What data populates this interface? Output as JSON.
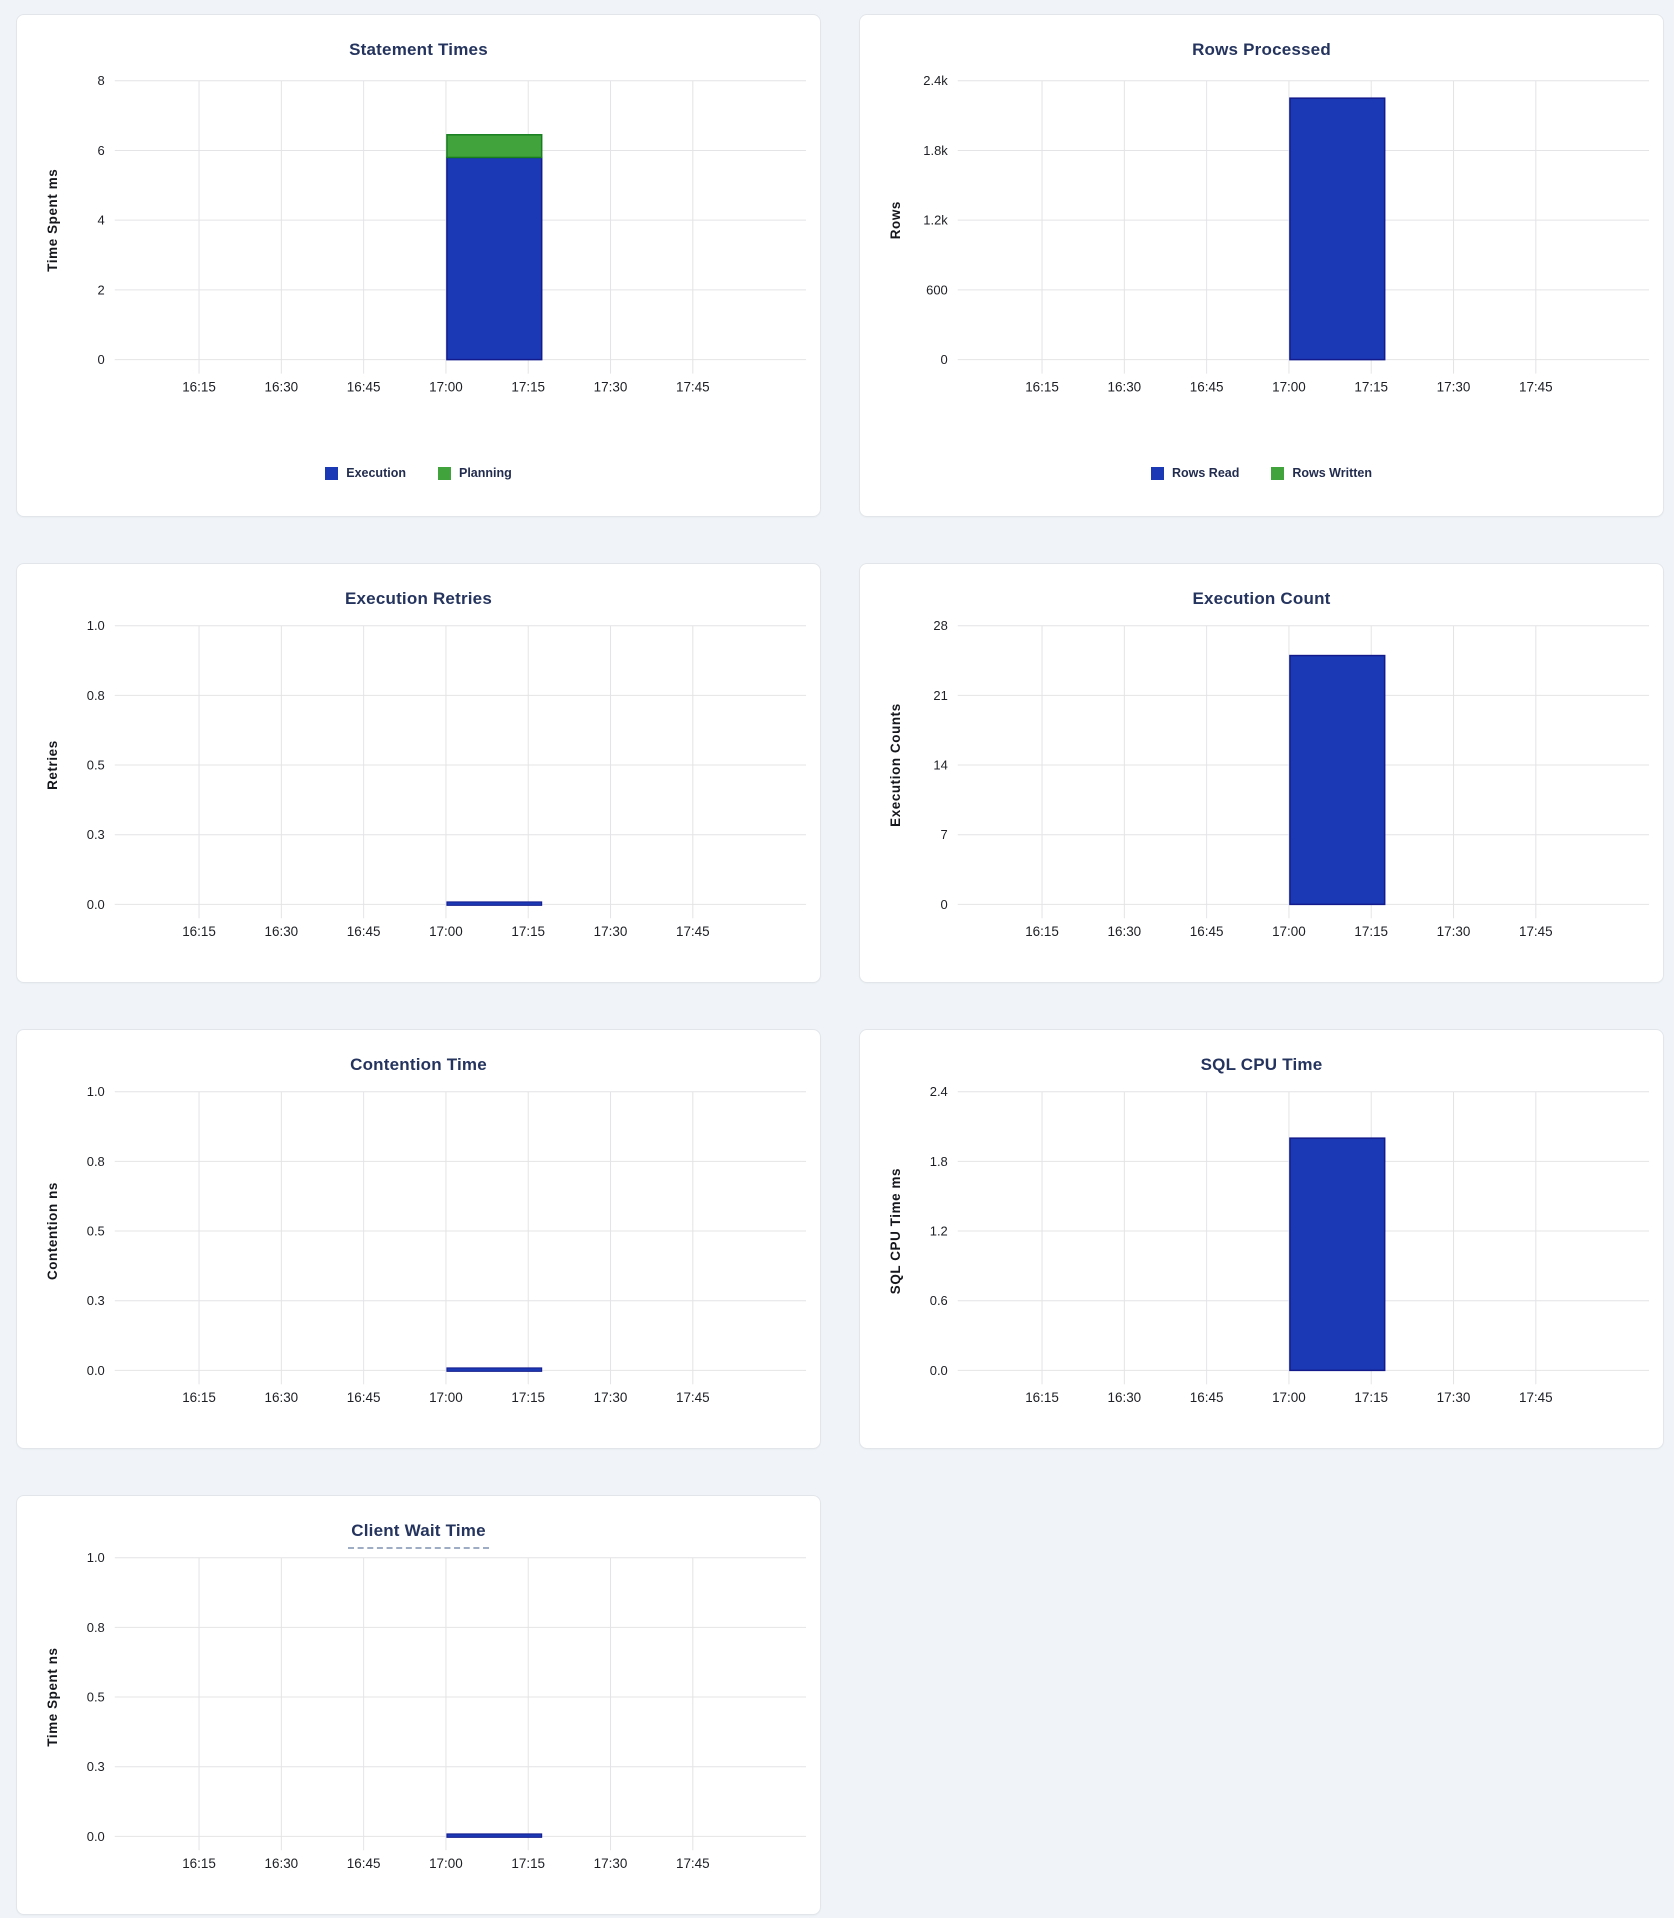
{
  "page": {
    "background_color": "#f0f4f8",
    "panel_background": "#ffffff",
    "title_color": "#25345e"
  },
  "chart_data": [
    {
      "type": "bar",
      "title": "Statement Times",
      "ylabel": "Time Spent ms",
      "xlabel": "",
      "ylim": [
        0,
        8
      ],
      "ytick_labels": [
        "0",
        "2",
        "4",
        "6",
        "8"
      ],
      "xtick_labels": [
        "16:15",
        "16:30",
        "16:45",
        "17:00",
        "17:15",
        "17:30",
        "17:45"
      ],
      "x_range": "16:00-18:00",
      "x_bucket": "17:00-17:15",
      "grid": true,
      "stacked": true,
      "series": [
        {
          "name": "Execution",
          "value": 5.8,
          "color": "#1b39b4",
          "stroke": "#131b8c"
        },
        {
          "name": "Planning",
          "value": 0.65,
          "color": "#41a33b",
          "stroke": "#187d1f"
        }
      ],
      "legend": [
        {
          "label": "Execution",
          "color": "#1b39b4"
        },
        {
          "label": "Planning",
          "color": "#41a33b"
        }
      ],
      "legend_position": "bottom"
    },
    {
      "type": "bar",
      "title": "Rows Processed",
      "ylabel": "Rows",
      "xlabel": "",
      "ylim": [
        0,
        2400
      ],
      "ytick_labels": [
        "0",
        "600",
        "1.2k",
        "1.8k",
        "2.4k"
      ],
      "xtick_labels": [
        "16:15",
        "16:30",
        "16:45",
        "17:00",
        "17:15",
        "17:30",
        "17:45"
      ],
      "x_range": "16:00-18:00",
      "x_bucket": "17:00-17:15",
      "grid": true,
      "stacked": true,
      "series": [
        {
          "name": "Rows Read",
          "value": 2250,
          "color": "#1b39b4",
          "stroke": "#131b8c"
        },
        {
          "name": "Rows Written",
          "value": 0,
          "color": "#41a33b",
          "stroke": "#187d1f"
        }
      ],
      "legend": [
        {
          "label": "Rows Read",
          "color": "#1b39b4"
        },
        {
          "label": "Rows Written",
          "color": "#41a33b"
        }
      ],
      "legend_position": "bottom"
    },
    {
      "type": "bar",
      "title": "Execution Retries",
      "ylabel": "Retries",
      "xlabel": "",
      "ylim": [
        0,
        1.0
      ],
      "ytick_labels": [
        "0.0",
        "0.3",
        "0.5",
        "0.8",
        "1.0"
      ],
      "xtick_labels": [
        "16:15",
        "16:30",
        "16:45",
        "17:00",
        "17:15",
        "17:30",
        "17:45"
      ],
      "x_range": "16:00-18:00",
      "x_bucket": "17:00-17:15",
      "grid": true,
      "series": [
        {
          "name": "Retries",
          "value": 0,
          "color": "#1b39b4",
          "stroke": "#131b8c"
        }
      ]
    },
    {
      "type": "bar",
      "title": "Execution Count",
      "ylabel": "Execution Counts",
      "xlabel": "",
      "ylim": [
        0,
        28
      ],
      "ytick_labels": [
        "0",
        "7",
        "14",
        "21",
        "28"
      ],
      "xtick_labels": [
        "16:15",
        "16:30",
        "16:45",
        "17:00",
        "17:15",
        "17:30",
        "17:45"
      ],
      "x_range": "16:00-18:00",
      "x_bucket": "17:00-17:15",
      "grid": true,
      "series": [
        {
          "name": "Execution Count",
          "value": 25,
          "color": "#1b39b4",
          "stroke": "#131b8c"
        }
      ]
    },
    {
      "type": "bar",
      "title": "Contention Time",
      "ylabel": "Contention ns",
      "xlabel": "",
      "ylim": [
        0,
        1.0
      ],
      "ytick_labels": [
        "0.0",
        "0.3",
        "0.5",
        "0.8",
        "1.0"
      ],
      "xtick_labels": [
        "16:15",
        "16:30",
        "16:45",
        "17:00",
        "17:15",
        "17:30",
        "17:45"
      ],
      "x_range": "16:00-18:00",
      "x_bucket": "17:00-17:15",
      "grid": true,
      "series": [
        {
          "name": "Contention",
          "value": 0,
          "color": "#1b39b4",
          "stroke": "#131b8c"
        }
      ]
    },
    {
      "type": "bar",
      "title": "SQL CPU Time",
      "ylabel": "SQL CPU Time ms",
      "xlabel": "",
      "ylim": [
        0,
        2.4
      ],
      "ytick_labels": [
        "0.0",
        "0.6",
        "1.2",
        "1.8",
        "2.4"
      ],
      "xtick_labels": [
        "16:15",
        "16:30",
        "16:45",
        "17:00",
        "17:15",
        "17:30",
        "17:45"
      ],
      "x_range": "16:00-18:00",
      "x_bucket": "17:00-17:15",
      "grid": true,
      "series": [
        {
          "name": "SQL CPU Time",
          "value": 2.0,
          "color": "#1b39b4",
          "stroke": "#131b8c"
        }
      ]
    },
    {
      "type": "bar",
      "title": "Client Wait Time",
      "title_has_help_tooltip": true,
      "ylabel": "Time Spent ns",
      "xlabel": "",
      "ylim": [
        0,
        1.0
      ],
      "ytick_labels": [
        "0.0",
        "0.3",
        "0.5",
        "0.8",
        "1.0"
      ],
      "xtick_labels": [
        "16:15",
        "16:30",
        "16:45",
        "17:00",
        "17:15",
        "17:30",
        "17:45"
      ],
      "x_range": "16:00-18:00",
      "x_bucket": "17:00-17:15",
      "grid": true,
      "series": [
        {
          "name": "Client Wait",
          "value": 0,
          "color": "#1b39b4",
          "stroke": "#131b8c"
        }
      ]
    }
  ]
}
